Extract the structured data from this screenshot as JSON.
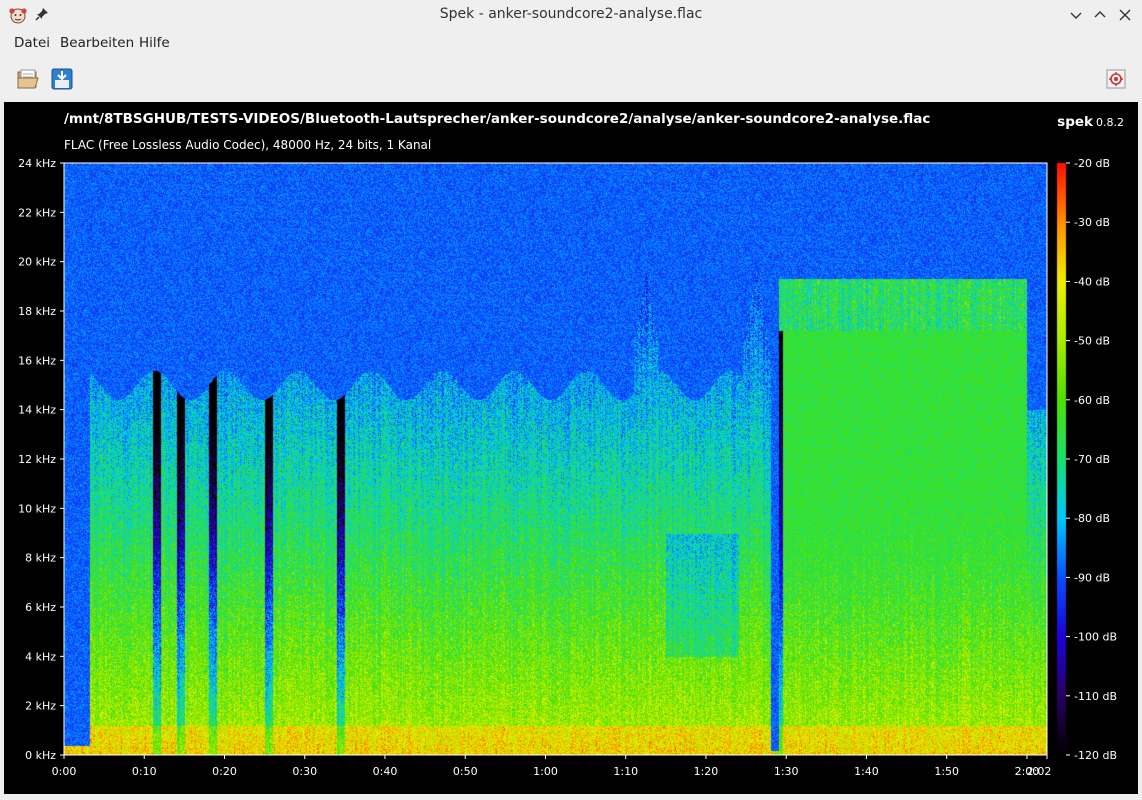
{
  "window": {
    "title": "Spek - anker-soundcore2-analyse.flac"
  },
  "menu": {
    "items": [
      "Datei",
      "Bearbeiten",
      "Hilfe"
    ]
  },
  "toolbar": {
    "open_icon": "folder-open-icon",
    "save_icon": "save-download-icon",
    "preferences_icon": "preferences-icon"
  },
  "panel": {
    "file_path": "/mnt/8TBSGHUB/TESTS-VIDEOS/Bluetooth-Lautsprecher/anker-soundcore2/analyse/anker-soundcore2-analyse.flac",
    "file_info": "FLAC (Free Lossless Audio Codec), 48000 Hz, 24 bits, 1 Kanal",
    "brand_name": "spek",
    "brand_version": "0.8.2"
  },
  "chart_data": {
    "type": "heatmap",
    "y_axis": {
      "unit": "kHz",
      "ticks": [
        "0 kHz",
        "2 kHz",
        "4 kHz",
        "6 kHz",
        "8 kHz",
        "10 kHz",
        "12 kHz",
        "14 kHz",
        "16 kHz",
        "18 kHz",
        "20 kHz",
        "22 kHz",
        "24 kHz"
      ],
      "range": [
        0,
        24
      ]
    },
    "x_axis": {
      "ticks": [
        "0:00",
        "0:10",
        "0:20",
        "0:30",
        "0:40",
        "0:50",
        "1:00",
        "1:10",
        "1:20",
        "1:30",
        "1:40",
        "1:50",
        "2:00"
      ],
      "last_label": "2:02",
      "range_seconds": [
        0,
        122
      ]
    },
    "color_scale": {
      "ticks": [
        "-20 dB",
        "-30 dB",
        "-40 dB",
        "-50 dB",
        "-60 dB",
        "-70 dB",
        "-80 dB",
        "-90 dB",
        "-100 dB",
        "-110 dB",
        "-120 dB"
      ],
      "range_db": [
        -120,
        -20
      ],
      "colors": [
        "#000000",
        "#2a0060",
        "#1e00d8",
        "#0a50ff",
        "#00c8ff",
        "#19e070",
        "#4fe000",
        "#a8ec00",
        "#f0f000",
        "#ff9000",
        "#ff1000"
      ]
    },
    "grid": false
  }
}
